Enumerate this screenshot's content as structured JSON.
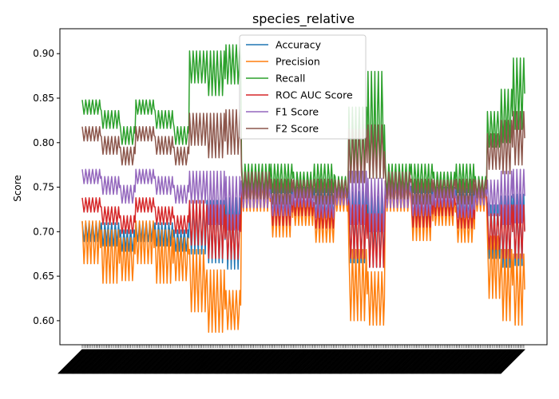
{
  "chart_data": {
    "type": "line",
    "title": "species_relative",
    "xlabel": "",
    "ylabel": "Score",
    "ylim": [
      0.573,
      0.928
    ],
    "yticks": [
      0.6,
      0.65,
      0.7,
      0.75,
      0.8,
      0.85,
      0.9
    ],
    "ytick_labels": [
      "0.60",
      "0.65",
      "0.70",
      "0.75",
      "0.80",
      "0.85",
      "0.90"
    ],
    "x_tick_labels_legible": false,
    "grid": false,
    "legend_position": "top-center",
    "segments": [
      {
        "n": 22,
        "base": [
          0.7,
          0.688,
          0.84,
          0.73,
          0.762,
          0.81
        ],
        "amp": [
          0.011,
          0.024,
          0.008,
          0.008,
          0.008,
          0.008
        ]
      },
      {
        "n": 22,
        "base": [
          0.697,
          0.672,
          0.826,
          0.718,
          0.752,
          0.797
        ],
        "amp": [
          0.013,
          0.03,
          0.01,
          0.01,
          0.01,
          0.01
        ]
      },
      {
        "n": 18,
        "base": [
          0.69,
          0.669,
          0.808,
          0.708,
          0.742,
          0.785
        ],
        "amp": [
          0.012,
          0.024,
          0.01,
          0.01,
          0.01,
          0.01
        ]
      },
      {
        "n": 22,
        "base": [
          0.7,
          0.688,
          0.84,
          0.73,
          0.762,
          0.81
        ],
        "amp": [
          0.011,
          0.024,
          0.008,
          0.008,
          0.008,
          0.008
        ]
      },
      {
        "n": 22,
        "base": [
          0.697,
          0.672,
          0.826,
          0.718,
          0.752,
          0.797
        ],
        "amp": [
          0.013,
          0.03,
          0.01,
          0.01,
          0.01,
          0.01
        ]
      },
      {
        "n": 18,
        "base": [
          0.69,
          0.669,
          0.808,
          0.708,
          0.742,
          0.785
        ],
        "amp": [
          0.012,
          0.024,
          0.01,
          0.01,
          0.01,
          0.01
        ]
      },
      {
        "n": 20,
        "base": [
          0.705,
          0.645,
          0.885,
          0.71,
          0.75,
          0.815
        ],
        "amp": [
          0.03,
          0.035,
          0.018,
          0.025,
          0.018,
          0.018
        ]
      },
      {
        "n": 22,
        "base": [
          0.7,
          0.622,
          0.878,
          0.7,
          0.738,
          0.808
        ],
        "amp": [
          0.035,
          0.035,
          0.025,
          0.03,
          0.03,
          0.025
        ]
      },
      {
        "n": 18,
        "base": [
          0.698,
          0.612,
          0.888,
          0.694,
          0.732,
          0.812
        ],
        "amp": [
          0.04,
          0.022,
          0.022,
          0.025,
          0.03,
          0.025
        ]
      },
      {
        "n": 34,
        "base": [
          0.742,
          0.738,
          0.76,
          0.742,
          0.742,
          0.752
        ],
        "amp": [
          0.015,
          0.015,
          0.016,
          0.015,
          0.015,
          0.015
        ]
      },
      {
        "n": 26,
        "base": [
          0.735,
          0.716,
          0.76,
          0.722,
          0.73,
          0.745
        ],
        "amp": [
          0.018,
          0.022,
          0.016,
          0.015,
          0.012,
          0.014
        ]
      },
      {
        "n": 24,
        "base": [
          0.738,
          0.722,
          0.755,
          0.73,
          0.738,
          0.748
        ],
        "amp": [
          0.012,
          0.015,
          0.012,
          0.012,
          0.01,
          0.01
        ]
      },
      {
        "n": 24,
        "base": [
          0.733,
          0.708,
          0.76,
          0.718,
          0.728,
          0.745
        ],
        "amp": [
          0.016,
          0.02,
          0.016,
          0.014,
          0.012,
          0.014
        ]
      },
      {
        "n": 16,
        "base": [
          0.74,
          0.735,
          0.752,
          0.74,
          0.74,
          0.748
        ],
        "amp": [
          0.01,
          0.012,
          0.01,
          0.01,
          0.01,
          0.01
        ]
      },
      {
        "n": 22,
        "base": [
          0.705,
          0.64,
          0.8,
          0.7,
          0.738,
          0.785
        ],
        "amp": [
          0.04,
          0.04,
          0.04,
          0.03,
          0.03,
          0.03
        ]
      },
      {
        "n": 20,
        "base": [
          0.7,
          0.625,
          0.82,
          0.69,
          0.73,
          0.79
        ],
        "amp": [
          0.04,
          0.03,
          0.06,
          0.03,
          0.03,
          0.03
        ]
      },
      {
        "n": 30,
        "base": [
          0.742,
          0.738,
          0.76,
          0.742,
          0.742,
          0.752
        ],
        "amp": [
          0.015,
          0.015,
          0.016,
          0.015,
          0.015,
          0.015
        ]
      },
      {
        "n": 26,
        "base": [
          0.733,
          0.712,
          0.76,
          0.72,
          0.73,
          0.745
        ],
        "amp": [
          0.018,
          0.022,
          0.016,
          0.015,
          0.012,
          0.014
        ]
      },
      {
        "n": 26,
        "base": [
          0.738,
          0.722,
          0.755,
          0.73,
          0.738,
          0.748
        ],
        "amp": [
          0.012,
          0.015,
          0.012,
          0.012,
          0.01,
          0.01
        ]
      },
      {
        "n": 22,
        "base": [
          0.733,
          0.708,
          0.76,
          0.718,
          0.728,
          0.745
        ],
        "amp": [
          0.016,
          0.02,
          0.016,
          0.014,
          0.012,
          0.014
        ]
      },
      {
        "n": 14,
        "base": [
          0.74,
          0.735,
          0.752,
          0.74,
          0.74,
          0.748
        ],
        "amp": [
          0.01,
          0.012,
          0.01,
          0.01,
          0.01,
          0.01
        ]
      },
      {
        "n": 16,
        "base": [
          0.7,
          0.66,
          0.815,
          0.7,
          0.738,
          0.79
        ],
        "amp": [
          0.03,
          0.035,
          0.02,
          0.02,
          0.02,
          0.02
        ]
      },
      {
        "n": 14,
        "base": [
          0.7,
          0.64,
          0.83,
          0.7,
          0.738,
          0.795
        ],
        "amp": [
          0.04,
          0.04,
          0.03,
          0.03,
          0.03,
          0.03
        ]
      },
      {
        "n": 14,
        "base": [
          0.702,
          0.635,
          0.855,
          0.7,
          0.74,
          0.805
        ],
        "amp": [
          0.04,
          0.04,
          0.04,
          0.03,
          0.03,
          0.03
        ]
      }
    ],
    "series": [
      {
        "name": "Accuracy",
        "color": "#1f77b4"
      },
      {
        "name": "Precision",
        "color": "#ff7f0e"
      },
      {
        "name": "Recall",
        "color": "#2ca02c"
      },
      {
        "name": "ROC AUC Score",
        "color": "#d62728"
      },
      {
        "name": "F1 Score",
        "color": "#9467bd"
      },
      {
        "name": "F2 Score",
        "color": "#8c564b"
      }
    ]
  }
}
